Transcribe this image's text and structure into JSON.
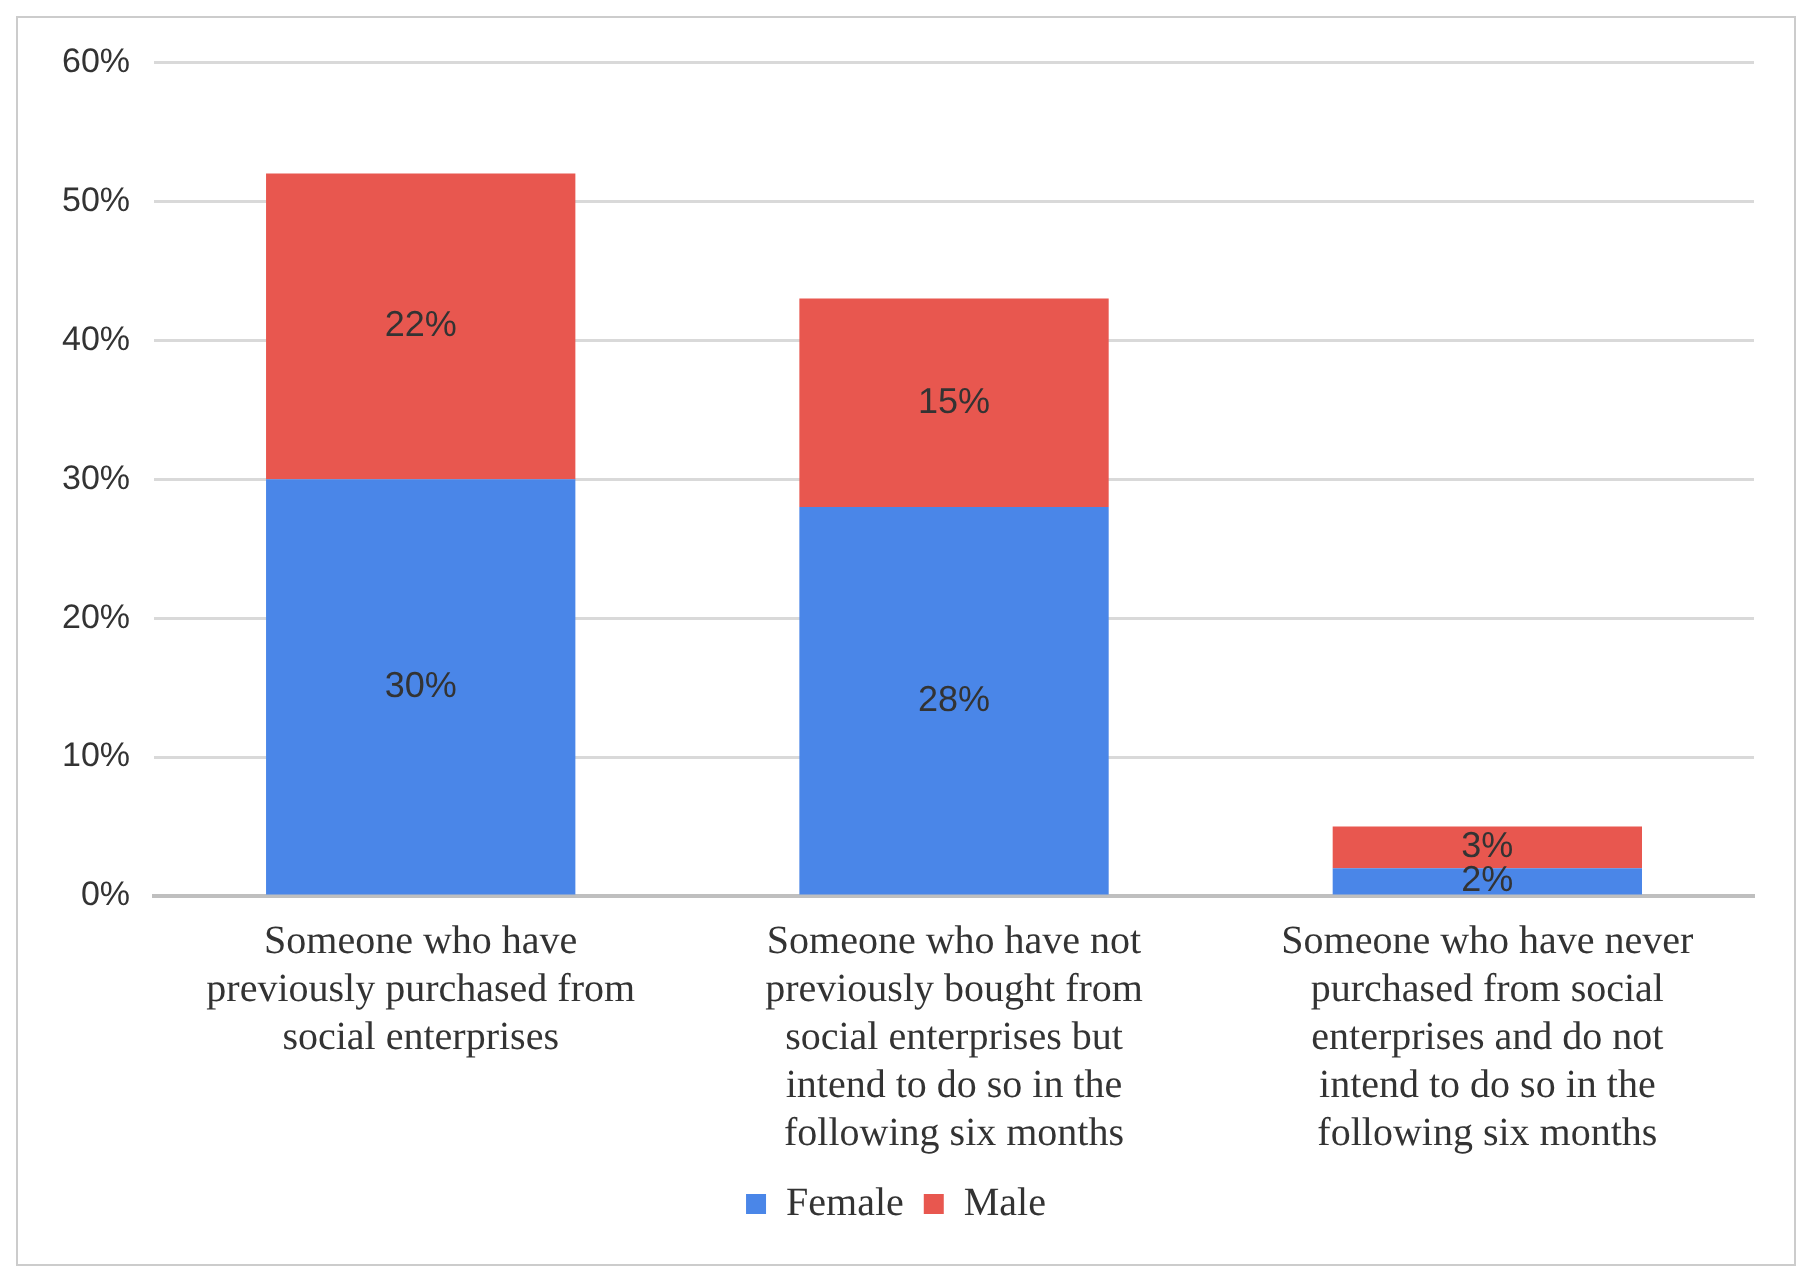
{
  "chart_data": {
    "type": "bar",
    "stacked": true,
    "categories": [
      "Someone who have previously purchased from social enterprises",
      "Someone who have not previously bought from social enterprises but intend to do so in the following six months",
      "Someone who have never purchased from social enterprises and do not intend to do so in the following six months"
    ],
    "series": [
      {
        "name": "Female",
        "color": "#4a86e8",
        "values": [
          30,
          28,
          2
        ],
        "value_labels": [
          "30%",
          "28%",
          "2%"
        ]
      },
      {
        "name": "Male",
        "color": "#e8574f",
        "values": [
          22,
          15,
          3
        ],
        "value_labels": [
          "22%",
          "15%",
          "3%"
        ]
      }
    ],
    "ylim": [
      0,
      60
    ],
    "yticks": [
      {
        "value": 0,
        "label": "0%"
      },
      {
        "value": 10,
        "label": "10%"
      },
      {
        "value": 20,
        "label": "20%"
      },
      {
        "value": 30,
        "label": "30%"
      },
      {
        "value": 40,
        "label": "40%"
      },
      {
        "value": 50,
        "label": "50%"
      },
      {
        "value": 60,
        "label": "60%"
      }
    ],
    "grid": "y",
    "legend": "bottom"
  }
}
